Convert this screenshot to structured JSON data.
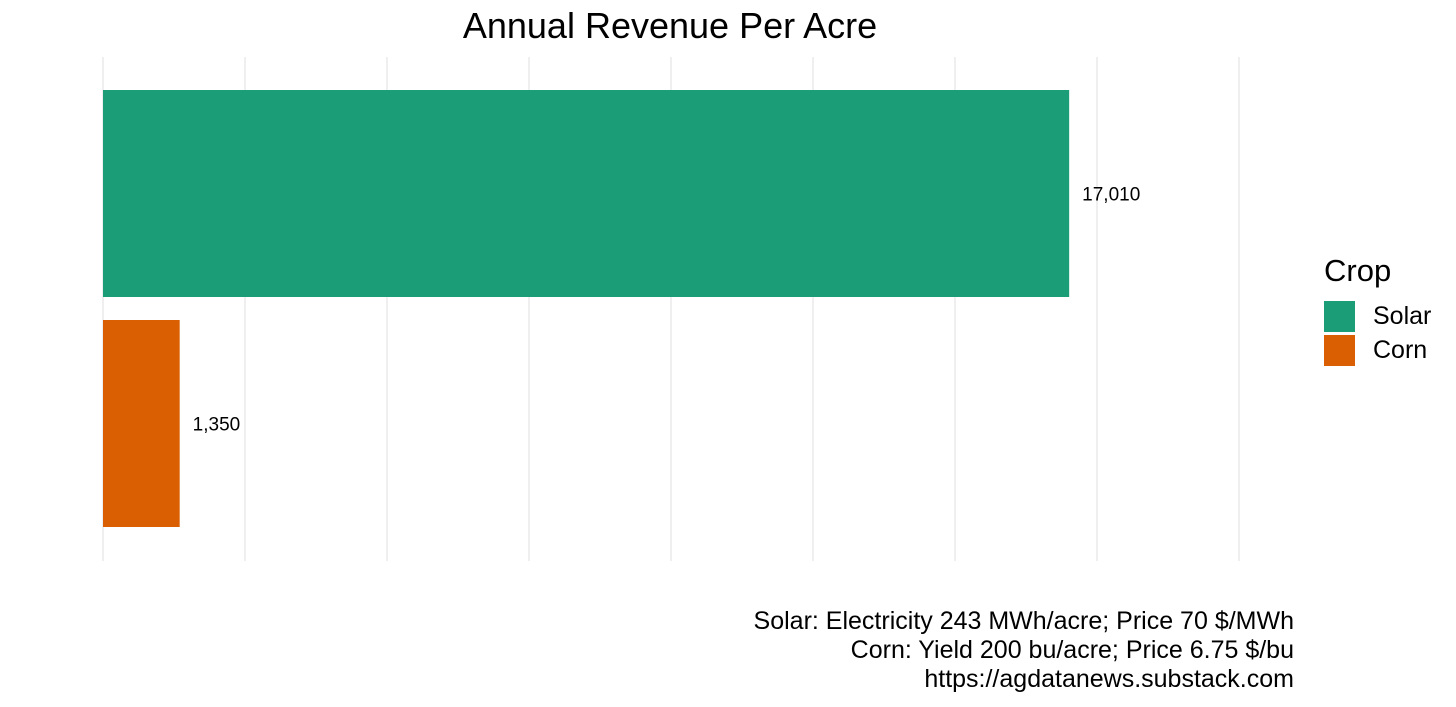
{
  "chart_data": {
    "type": "bar",
    "orientation": "horizontal",
    "title": "Annual Revenue Per Acre",
    "xlabel": "",
    "ylabel": "",
    "categories": [
      "Solar",
      "Corn"
    ],
    "values": [
      17010,
      1350
    ],
    "value_labels": [
      "17,010",
      "1,350"
    ],
    "colors": [
      "#1b9e77",
      "#d95f02"
    ],
    "xlim": [
      0,
      20000
    ],
    "x_gridlines": [
      0,
      2500,
      5000,
      7500,
      10000,
      12500,
      15000,
      17500,
      20000
    ],
    "grid": true,
    "axis_tick_labels_shown": false,
    "legend": {
      "title": "Crop",
      "placement": "right",
      "items": [
        {
          "label": "Solar",
          "color": "#1b9e77"
        },
        {
          "label": "Corn",
          "color": "#d95f02"
        }
      ]
    },
    "caption": [
      "Solar: Electricity 243 MWh/acre; Price 70 $/MWh",
      "Corn: Yield 200 bu/acre; Price 6.75 $/bu",
      "https://agdatanews.substack.com"
    ]
  }
}
